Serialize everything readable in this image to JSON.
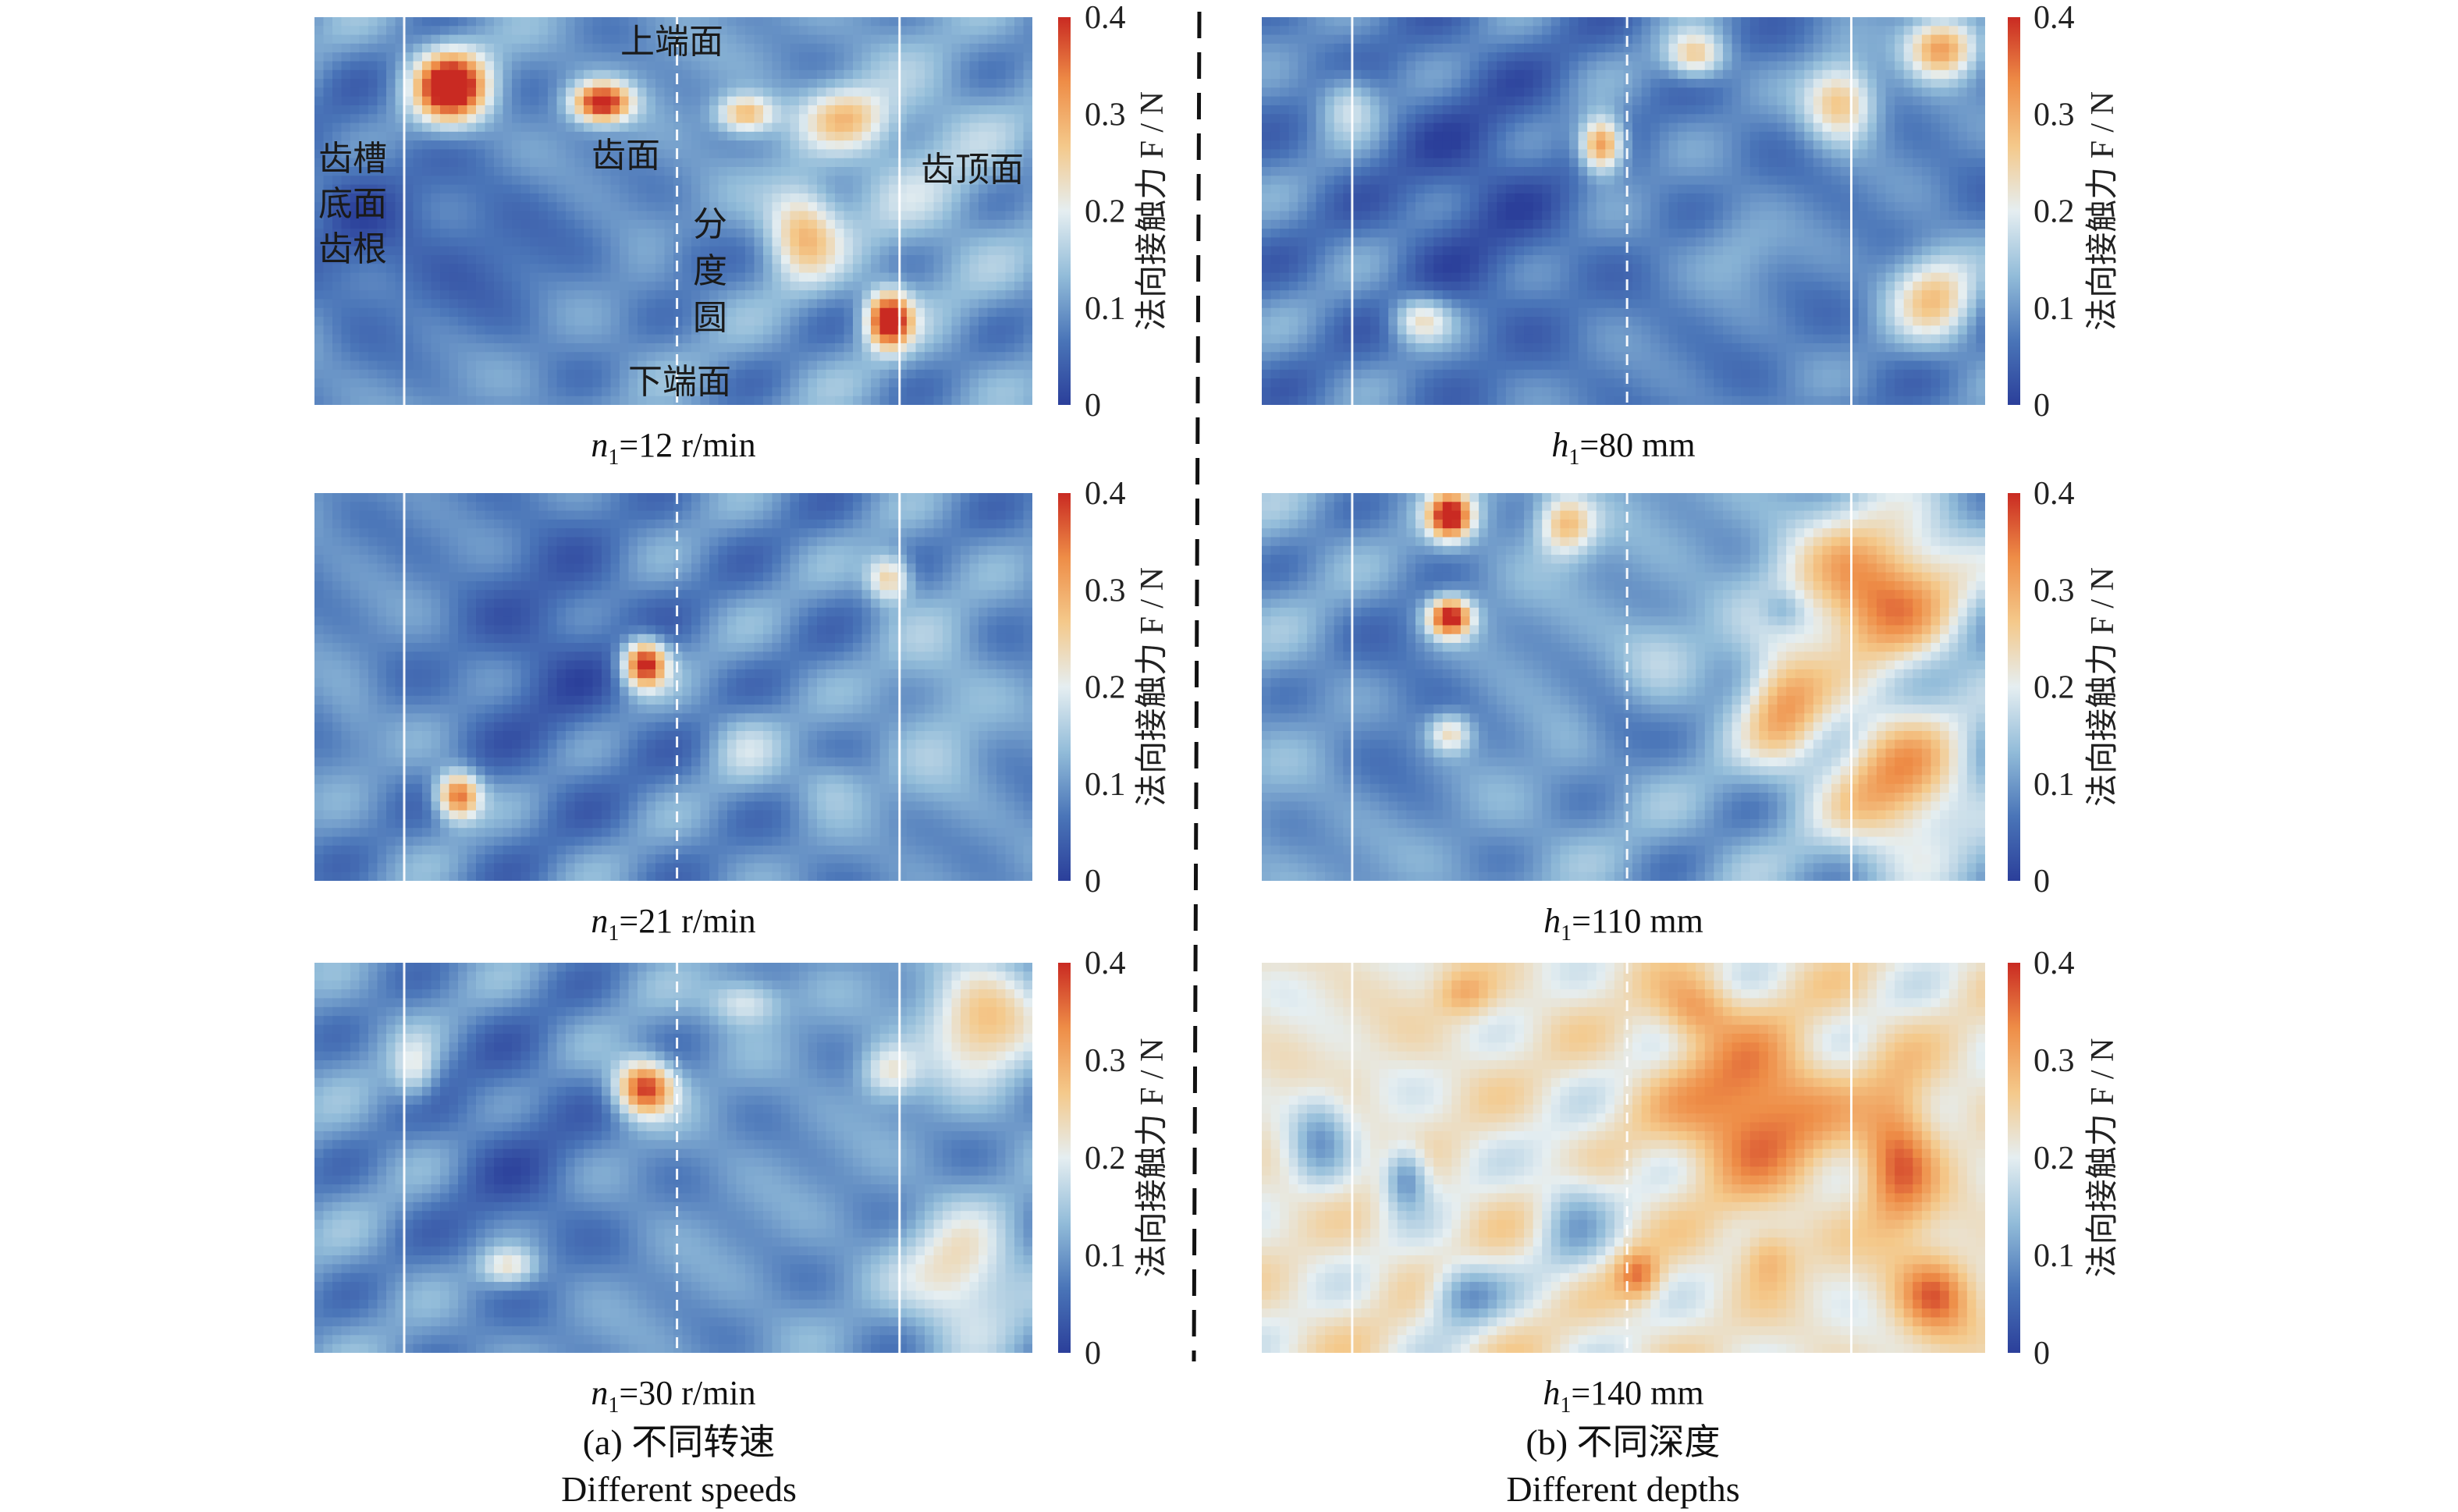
{
  "chart_data": {
    "type": "heatmap",
    "colorbar": {
      "label": "法向接触力 F / N",
      "ticks": [
        "0",
        "0.1",
        "0.2",
        "0.3",
        "0.4"
      ],
      "range": [
        0,
        0.4
      ],
      "colormap": [
        "#2b3f9a",
        "#4a75b8",
        "#92bcd9",
        "#e5eef1",
        "#f4c98b",
        "#ee8d47",
        "#c92a22"
      ]
    },
    "region_labels": {
      "root": [
        "齿槽",
        "底面",
        "齿根"
      ],
      "flank": "齿面",
      "pitch": [
        "分",
        "度",
        "圆"
      ],
      "top": "齿顶面",
      "upper_end": "上端面",
      "lower_end": "下端面"
    },
    "groups": [
      {
        "caption_cn": "(a) 不同转速",
        "caption_en": "Different speeds",
        "panels": [
          {
            "var": "n",
            "sub": "1",
            "rest": "=12 r/min",
            "base": 0.1,
            "blobs": [
              [
                0.19,
                0.18,
                0.38,
                0.05,
                0.09
              ],
              [
                0.4,
                0.22,
                0.32,
                0.04,
                0.05
              ],
              [
                0.05,
                0.5,
                -0.05,
                0.08,
                0.3
              ],
              [
                0.22,
                0.6,
                -0.05,
                0.15,
                0.25
              ],
              [
                0.6,
                0.25,
                0.2,
                0.04,
                0.05
              ],
              [
                0.68,
                0.55,
                0.18,
                0.05,
                0.12
              ],
              [
                0.8,
                0.78,
                0.35,
                0.03,
                0.07
              ],
              [
                0.74,
                0.26,
                0.15,
                0.06,
                0.08
              ],
              [
                0.52,
                0.62,
                -0.04,
                0.05,
                0.08
              ],
              [
                0.85,
                0.4,
                0.05,
                0.12,
                0.3
              ]
            ]
          },
          {
            "var": "n",
            "sub": "1",
            "rest": "=21 r/min",
            "base": 0.09,
            "blobs": [
              [
                0.46,
                0.44,
                0.34,
                0.03,
                0.06
              ],
              [
                0.2,
                0.78,
                0.28,
                0.03,
                0.06
              ],
              [
                0.8,
                0.22,
                0.18,
                0.03,
                0.06
              ],
              [
                0.87,
                0.55,
                0.05,
                0.08,
                0.3
              ],
              [
                0.33,
                0.4,
                -0.05,
                0.12,
                0.35
              ],
              [
                0.6,
                0.65,
                0.06,
                0.05,
                0.1
              ],
              [
                0.72,
                0.75,
                0.06,
                0.05,
                0.08
              ],
              [
                0.05,
                0.6,
                0.03,
                0.04,
                0.1
              ]
            ]
          },
          {
            "var": "n",
            "sub": "1",
            "rest": "=30 r/min",
            "base": 0.1,
            "blobs": [
              [
                0.46,
                0.32,
                0.3,
                0.04,
                0.07
              ],
              [
                0.93,
                0.15,
                0.18,
                0.08,
                0.15
              ],
              [
                0.9,
                0.8,
                0.15,
                0.08,
                0.15
              ],
              [
                0.6,
                0.1,
                0.12,
                0.05,
                0.06
              ],
              [
                0.27,
                0.78,
                0.14,
                0.04,
                0.05
              ],
              [
                0.14,
                0.28,
                0.1,
                0.03,
                0.08
              ],
              [
                0.28,
                0.5,
                -0.05,
                0.12,
                0.35
              ],
              [
                0.8,
                0.28,
                0.12,
                0.04,
                0.07
              ]
            ]
          }
        ]
      },
      {
        "caption_cn": "(b) 不同深度",
        "caption_en": "Different depths",
        "panels": [
          {
            "var": "h",
            "sub": "1",
            "rest": "=80 mm",
            "base": 0.08,
            "blobs": [
              [
                0.47,
                0.33,
                0.28,
                0.03,
                0.07
              ],
              [
                0.6,
                0.1,
                0.18,
                0.04,
                0.06
              ],
              [
                0.8,
                0.22,
                0.2,
                0.05,
                0.1
              ],
              [
                0.94,
                0.08,
                0.25,
                0.05,
                0.08
              ],
              [
                0.93,
                0.72,
                0.18,
                0.06,
                0.12
              ],
              [
                0.22,
                0.78,
                0.15,
                0.04,
                0.06
              ],
              [
                0.12,
                0.22,
                0.1,
                0.04,
                0.08
              ],
              [
                0.66,
                0.6,
                0.05,
                0.06,
                0.1
              ],
              [
                0.3,
                0.45,
                -0.05,
                0.12,
                0.35
              ]
            ]
          },
          {
            "var": "h",
            "sub": "1",
            "rest": "=110 mm",
            "base": 0.11,
            "blobs": [
              [
                0.26,
                0.06,
                0.32,
                0.03,
                0.06
              ],
              [
                0.26,
                0.32,
                0.33,
                0.03,
                0.05
              ],
              [
                0.26,
                0.62,
                0.15,
                0.03,
                0.05
              ],
              [
                0.42,
                0.08,
                0.18,
                0.04,
                0.08
              ],
              [
                0.85,
                0.25,
                0.24,
                0.12,
                0.2
              ],
              [
                0.72,
                0.55,
                0.18,
                0.06,
                0.15
              ],
              [
                0.88,
                0.75,
                0.2,
                0.1,
                0.2
              ],
              [
                0.72,
                0.3,
                -0.06,
                0.03,
                0.05
              ],
              [
                0.2,
                0.5,
                -0.04,
                0.1,
                0.35
              ],
              [
                0.48,
                0.6,
                -0.04,
                0.05,
                0.1
              ],
              [
                0.55,
                0.4,
                0.04,
                0.06,
                0.1
              ]
            ]
          },
          {
            "var": "h",
            "sub": "1",
            "rest": "=140 mm",
            "base": 0.22,
            "blobs": [
              [
                0.68,
                0.38,
                0.16,
                0.1,
                0.18
              ],
              [
                0.88,
                0.5,
                0.14,
                0.05,
                0.2
              ],
              [
                0.2,
                0.55,
                -0.14,
                0.03,
                0.08
              ],
              [
                0.08,
                0.45,
                -0.1,
                0.04,
                0.12
              ],
              [
                0.28,
                0.85,
                -0.12,
                0.05,
                0.08
              ],
              [
                0.43,
                0.65,
                -0.08,
                0.05,
                0.15
              ],
              [
                0.6,
                0.12,
                0.1,
                0.05,
                0.08
              ],
              [
                0.28,
                0.08,
                0.08,
                0.04,
                0.06
              ],
              [
                0.93,
                0.85,
                0.14,
                0.05,
                0.1
              ],
              [
                0.52,
                0.8,
                0.12,
                0.03,
                0.06
              ],
              [
                0.7,
                0.75,
                0.08,
                0.04,
                0.08
              ]
            ]
          }
        ]
      }
    ]
  }
}
